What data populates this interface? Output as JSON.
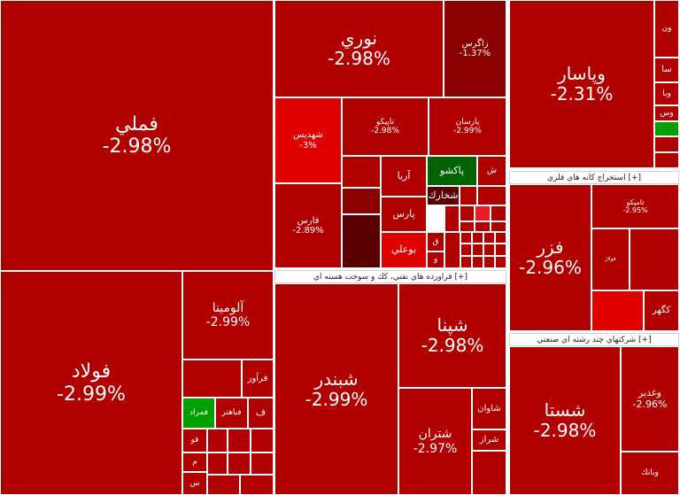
{
  "chart_data": {
    "type": "treemap",
    "colors": {
      "dark_red": "#8b0000",
      "red": "#b00000",
      "bright_red": "#e00000",
      "light_red": "#ec1c24",
      "green": "#00a000",
      "dark_green": "#006400",
      "very_dark": "#5a0000"
    },
    "sector_headers": [
      {
        "label": "استخراج کانه هاي فلزي [+]"
      },
      {
        "label": "فراورده هاي نفتي، كك و سوخت هسته اي [+]"
      },
      {
        "label": "شرکتهاي چند رشته اي صنعتي [+]"
      }
    ],
    "tiles": [
      {
        "name": "فملي",
        "change": "-2.98%",
        "color": "red"
      },
      {
        "name": "فولاد",
        "change": "-2.99%",
        "color": "red"
      },
      {
        "name": "آلومينا",
        "change": "-2.99%",
        "color": "red"
      },
      {
        "name": "فرآور",
        "change": "",
        "color": "red"
      },
      {
        "name": "فمراد",
        "change": "",
        "color": "green"
      },
      {
        "name": "فباهنر",
        "change": "",
        "color": "red"
      },
      {
        "name": "نوري",
        "change": "-2.98%",
        "color": "red"
      },
      {
        "name": "زاگرس",
        "change": "-1.37%",
        "color": "dark_red"
      },
      {
        "name": "شهديس",
        "change": "-3%",
        "color": "bright_red"
      },
      {
        "name": "تاپيكو",
        "change": "-2.98%",
        "color": "red"
      },
      {
        "name": "پارسان",
        "change": "-2.99%",
        "color": "red"
      },
      {
        "name": "فارس",
        "change": "-2.89%",
        "color": "red"
      },
      {
        "name": "آريا",
        "change": "",
        "color": "red"
      },
      {
        "name": "پاكشو",
        "change": "",
        "color": "dark_green"
      },
      {
        "name": "شخارك",
        "change": "",
        "color": "very_dark"
      },
      {
        "name": "پارس",
        "change": "",
        "color": "red"
      },
      {
        "name": "بوعلي",
        "change": "",
        "color": "bright_red"
      },
      {
        "name": "شبندر",
        "change": "-2.99%",
        "color": "red"
      },
      {
        "name": "شپنا",
        "change": "-2.98%",
        "color": "red"
      },
      {
        "name": "شتران",
        "change": "-2.97%",
        "color": "red"
      },
      {
        "name": "شاوان",
        "change": "",
        "color": "red"
      },
      {
        "name": "شراز",
        "change": "",
        "color": "red"
      },
      {
        "name": "وپاسار",
        "change": "-2.31%",
        "color": "red"
      },
      {
        "name": "فزر",
        "change": "-2.96%",
        "color": "red"
      },
      {
        "name": "تامپكو",
        "change": "-2.95%",
        "color": "red"
      },
      {
        "name": "كگهر",
        "change": "",
        "color": "red"
      },
      {
        "name": "شستا",
        "change": "-2.98%",
        "color": "red"
      },
      {
        "name": "وغدير",
        "change": "-2.96%",
        "color": "red"
      },
      {
        "name": "وبانك",
        "change": "",
        "color": "red"
      },
      {
        "name": "فولاژ",
        "change": "",
        "color": "red"
      },
      {
        "name": "ون",
        "change": "",
        "color": "red"
      },
      {
        "name": "سا",
        "change": "",
        "color": "red"
      },
      {
        "name": "وبا",
        "change": "",
        "color": "red"
      },
      {
        "name": "وس",
        "change": "",
        "color": "red"
      },
      {
        "name": "ش",
        "change": "",
        "color": "red"
      },
      {
        "name": "ق",
        "change": "",
        "color": "red"
      },
      {
        "name": "و",
        "change": "",
        "color": "red"
      },
      {
        "name": "ف",
        "change": "",
        "color": "red"
      },
      {
        "name": "قو",
        "change": "",
        "color": "red"
      },
      {
        "name": "م",
        "change": "",
        "color": "red"
      },
      {
        "name": "س",
        "change": "",
        "color": "red"
      }
    ]
  }
}
